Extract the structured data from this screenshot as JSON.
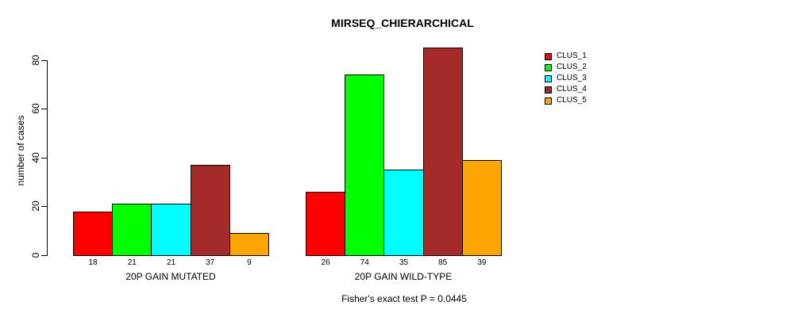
{
  "title": "MIRSEQ_CHIERARCHICAL",
  "y_axis": {
    "label": "number of cases",
    "ticks": [
      0,
      20,
      40,
      60,
      80
    ],
    "max": 80
  },
  "footer": "Fisher's exact test P = 0.0445",
  "legend": {
    "items": [
      {
        "label": "CLUS_1",
        "color": "#FF0000"
      },
      {
        "label": "CLUS_2",
        "color": "#00FF00"
      },
      {
        "label": "CLUS_3",
        "color": "#00FFFF"
      },
      {
        "label": "CLUS_4",
        "color": "#A52A2A"
      },
      {
        "label": "CLUS_5",
        "color": "#FFA500"
      }
    ]
  },
  "chart_data": {
    "type": "bar",
    "title": "MIRSEQ_CHIERARCHICAL",
    "xlabel": "",
    "ylabel": "number of cases",
    "ylim": [
      0,
      80
    ],
    "yticks": [
      0,
      20,
      40,
      60,
      80
    ],
    "grid": false,
    "legend_position": "right-outside",
    "categories": [
      "20P GAIN MUTATED",
      "20P GAIN WILD-TYPE"
    ],
    "series": [
      {
        "name": "CLUS_1",
        "color": "#FF0000",
        "values": [
          18,
          26
        ]
      },
      {
        "name": "CLUS_2",
        "color": "#00FF00",
        "values": [
          21,
          74
        ]
      },
      {
        "name": "CLUS_3",
        "color": "#00FFFF",
        "values": [
          21,
          35
        ]
      },
      {
        "name": "CLUS_4",
        "color": "#A52A2A",
        "values": [
          37,
          85
        ]
      },
      {
        "name": "CLUS_5",
        "color": "#FFA500",
        "values": [
          9,
          39
        ]
      }
    ],
    "bar_value_labels": [
      [
        18,
        21,
        21,
        37,
        9
      ],
      [
        26,
        74,
        35,
        85,
        39
      ]
    ],
    "annotation": "Fisher's exact test P = 0.0445"
  }
}
